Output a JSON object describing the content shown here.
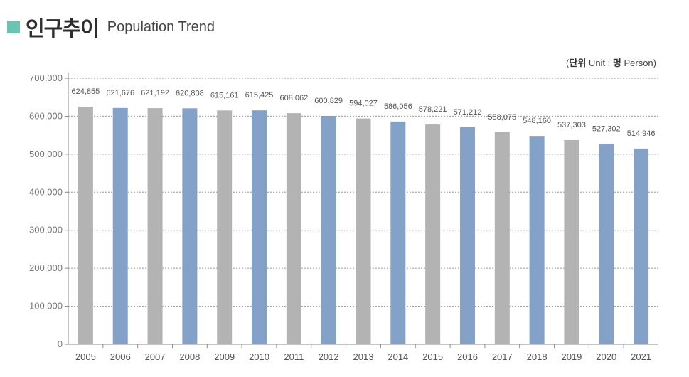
{
  "header": {
    "title_ko": "인구추이",
    "title_en": "Population Trend"
  },
  "unit_label": {
    "open": "(",
    "ko_unit": "단위",
    "unit_text": " Unit : ",
    "ko_person": "명",
    "person_text": " Person)"
  },
  "colors": {
    "accent": "#6cc3b2",
    "bar_gray": "#b3b3b3",
    "bar_blue": "#84a1c8"
  },
  "chart_data": {
    "type": "bar",
    "categories": [
      "2005",
      "2006",
      "2007",
      "2008",
      "2009",
      "2010",
      "2011",
      "2012",
      "2013",
      "2014",
      "2015",
      "2016",
      "2017",
      "2018",
      "2019",
      "2020",
      "2021"
    ],
    "values": [
      624855,
      621676,
      621192,
      620808,
      615161,
      615425,
      608062,
      600829,
      594027,
      586056,
      578221,
      571212,
      558075,
      548160,
      537303,
      527302,
      514946
    ],
    "value_labels": [
      "624,855",
      "621,676",
      "621,192",
      "620,808",
      "615,161",
      "615,425",
      "608,062",
      "600,829",
      "594,027",
      "586,056",
      "578,221",
      "571,212",
      "558,075",
      "548,160",
      "537,303",
      "527,302",
      "514,946"
    ],
    "bar_colors": [
      "gray",
      "blue",
      "gray",
      "blue",
      "gray",
      "blue",
      "gray",
      "blue",
      "gray",
      "blue",
      "gray",
      "blue",
      "gray",
      "blue",
      "gray",
      "blue",
      "blue"
    ],
    "yticks": [
      0,
      100000,
      200000,
      300000,
      400000,
      500000,
      600000,
      700000
    ],
    "ytick_labels": [
      "0",
      "100,000",
      "200,000",
      "300,000",
      "400,000",
      "500,000",
      "600,000",
      "700,000"
    ],
    "ylim": [
      0,
      700000
    ],
    "grid": true
  }
}
